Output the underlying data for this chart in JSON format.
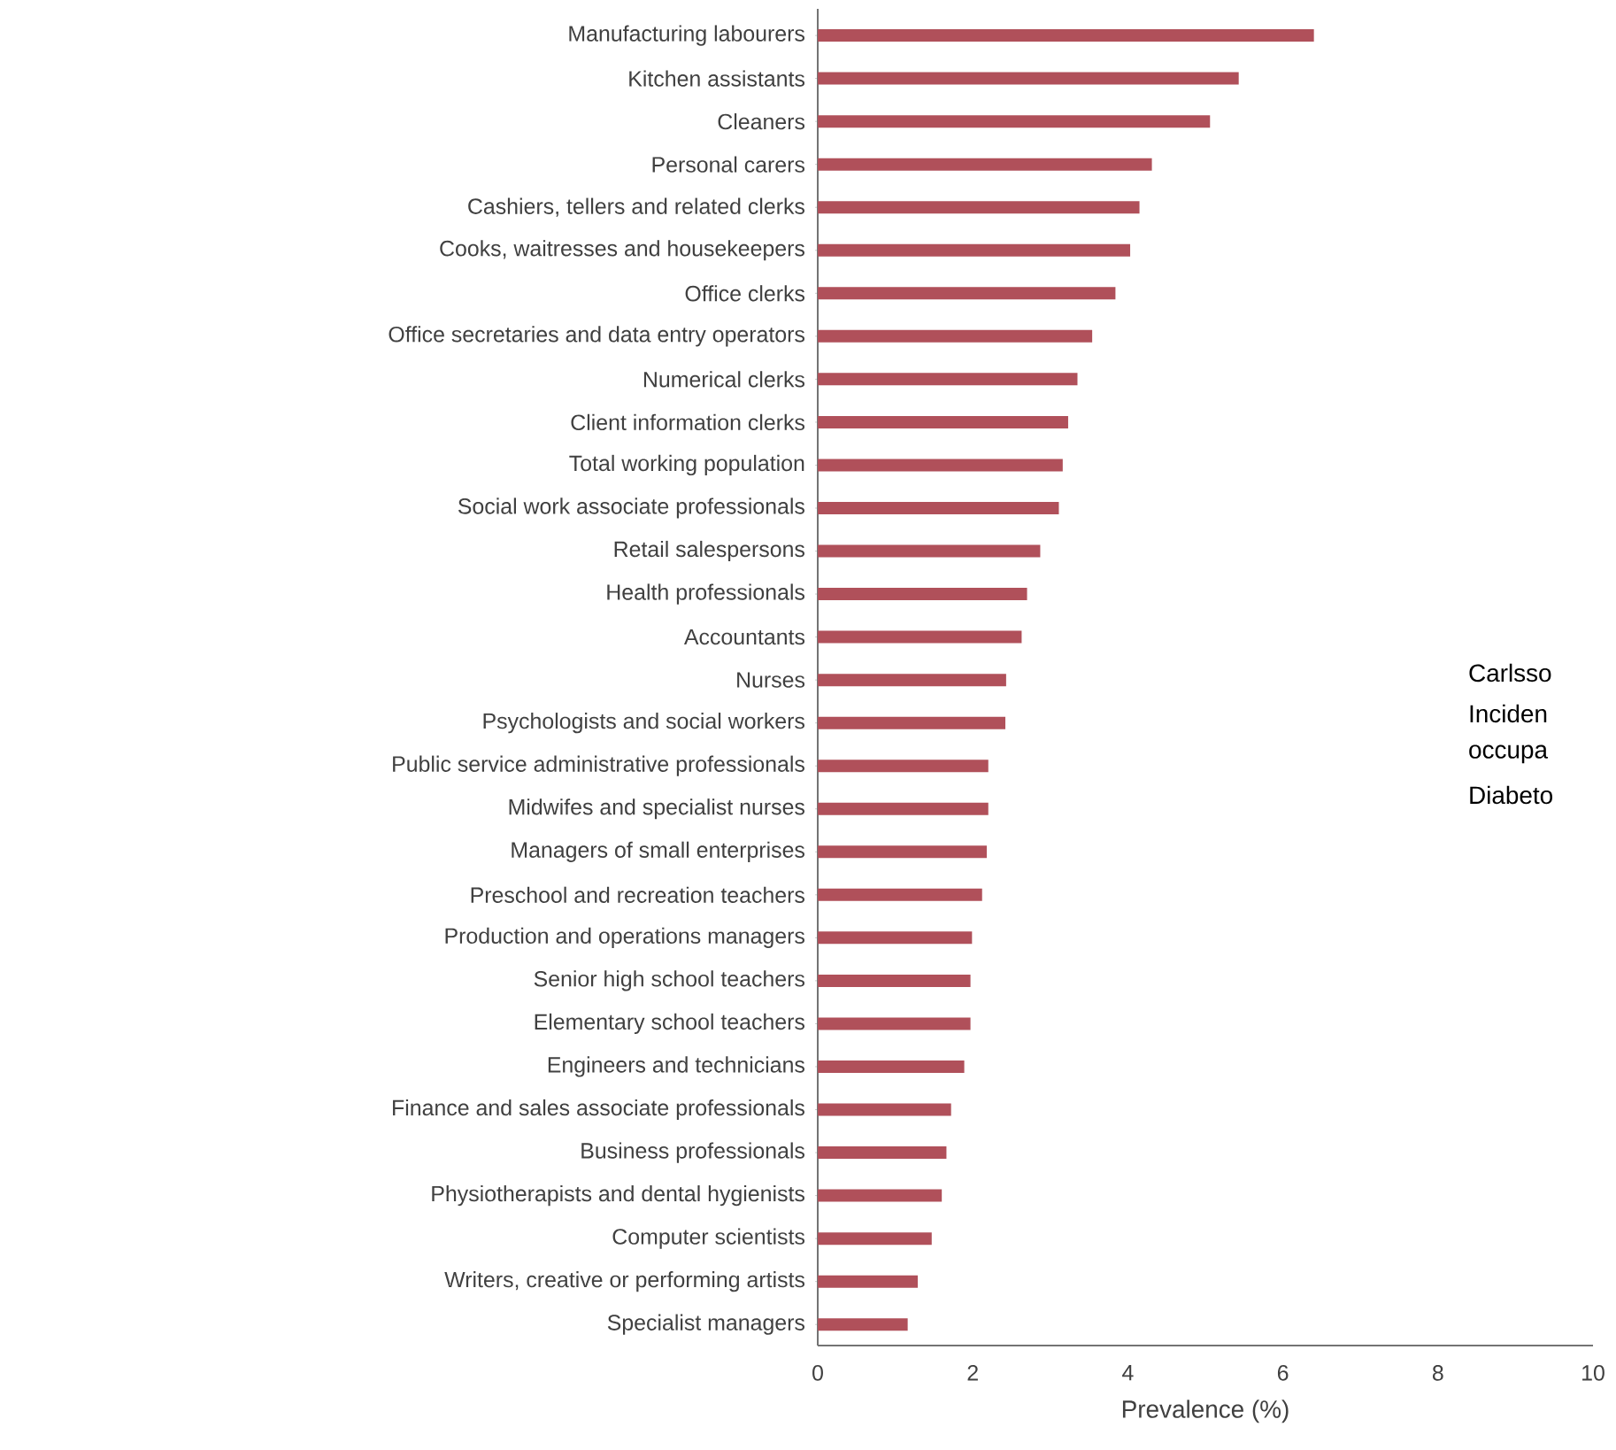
{
  "chart_data": {
    "type": "bar",
    "orientation": "horizontal",
    "xlabel": "Prevalence (%)",
    "categories": [
      "Manufacturing labourers",
      "Kitchen assistants",
      "Cleaners",
      "Personal carers",
      "Cashiers, tellers and related clerks",
      "Cooks, waitresses and housekeepers",
      "Office clerks",
      "Office secretaries and data entry operators",
      "Numerical clerks",
      "Client information clerks",
      "Total working population",
      "Social work associate professionals",
      "Retail salespersons",
      "Health professionals",
      "Accountants",
      "Nurses",
      "Psychologists and social workers",
      "Public service administrative professionals",
      "Midwifes and specialist nurses",
      "Managers of small enterprises",
      "Preschool and recreation teachers",
      "Production and operations managers",
      "Senior high school teachers",
      "Elementary school teachers",
      "Engineers and technicians",
      "Finance and sales associate professionals",
      "Business professionals",
      "Physiotherapists and dental hygienists",
      "Computer scientists",
      "Writers, creative or performing artists",
      "Specialist managers"
    ],
    "values": [
      6.4,
      5.43,
      5.06,
      4.31,
      4.15,
      4.03,
      3.84,
      3.54,
      3.35,
      3.23,
      3.16,
      3.11,
      2.87,
      2.7,
      2.63,
      2.43,
      2.42,
      2.2,
      2.2,
      2.18,
      2.12,
      1.99,
      1.97,
      1.97,
      1.89,
      1.72,
      1.66,
      1.6,
      1.47,
      1.29,
      1.16
    ],
    "color": "#b0505a",
    "xlim": [
      0,
      10
    ],
    "xticks": [
      0,
      2,
      4,
      6,
      8,
      10
    ],
    "annotations": [
      "Carlsso",
      "Inciden",
      "occupa",
      "Diabeto"
    ]
  }
}
